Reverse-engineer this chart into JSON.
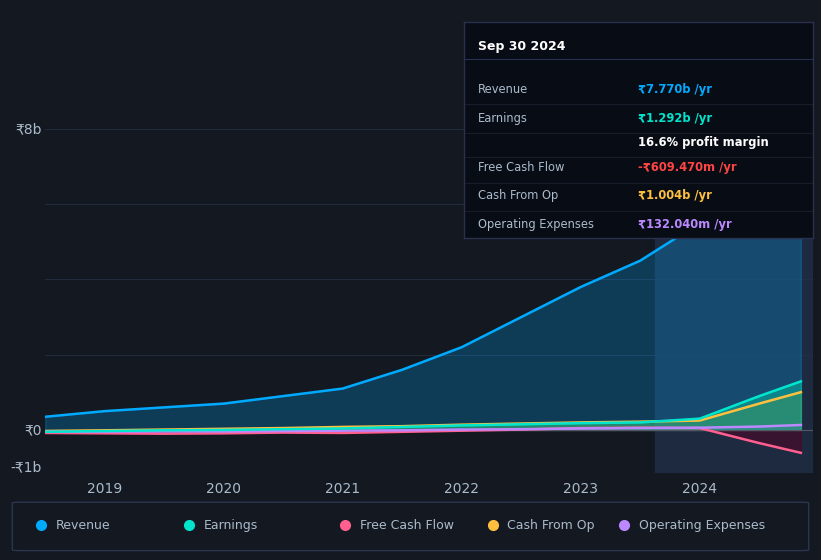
{
  "bg_color": "#141820",
  "plot_bg_color": "#141820",
  "title": "Sep 30 2024",
  "y_label_top": "₹8b",
  "y_label_zero": "₹0",
  "y_label_bottom": "-₹1b",
  "x_tick_positions": [
    2019,
    2020,
    2021,
    2022,
    2023,
    2024
  ],
  "legend": [
    {
      "label": "Revenue",
      "color": "#00aaff"
    },
    {
      "label": "Earnings",
      "color": "#00e5cc"
    },
    {
      "label": "Free Cash Flow",
      "color": "#ff6090"
    },
    {
      "label": "Cash From Op",
      "color": "#ffc040"
    },
    {
      "label": "Operating Expenses",
      "color": "#bb88ff"
    }
  ],
  "tooltip_title": "Sep 30 2024",
  "tooltip_rows": [
    {
      "label": "Revenue",
      "value": "₹7.770b /yr",
      "label_color": "#aabbcc",
      "value_color": "#00aaff"
    },
    {
      "label": "Earnings",
      "value": "₹1.292b /yr",
      "label_color": "#aabbcc",
      "value_color": "#00e5cc"
    },
    {
      "label": "",
      "value": "16.6% profit margin",
      "label_color": "#aabbcc",
      "value_color": "#ffffff"
    },
    {
      "label": "Free Cash Flow",
      "value": "-₹609.470m /yr",
      "label_color": "#aabbcc",
      "value_color": "#ff4444"
    },
    {
      "label": "Cash From Op",
      "value": "₹1.004b /yr",
      "label_color": "#aabbcc",
      "value_color": "#ffc040"
    },
    {
      "label": "Operating Expenses",
      "value": "₹132.040m /yr",
      "label_color": "#aabbcc",
      "value_color": "#bb88ff"
    }
  ],
  "series": {
    "Revenue": {
      "color": "#00aaff",
      "fill_color": "#00aaff",
      "fill_alpha": 0.25,
      "x": [
        2018.5,
        2019.0,
        2019.5,
        2020.0,
        2020.5,
        2021.0,
        2021.5,
        2022.0,
        2022.5,
        2023.0,
        2023.5,
        2024.0,
        2024.5,
        2024.85
      ],
      "y": [
        0.35,
        0.5,
        0.6,
        0.7,
        0.9,
        1.1,
        1.6,
        2.2,
        3.0,
        3.8,
        4.5,
        5.5,
        6.8,
        7.77
      ]
    },
    "Earnings": {
      "color": "#00e5cc",
      "fill_color": "#00ccaa",
      "fill_alpha": 0.45,
      "x": [
        2018.5,
        2019.0,
        2019.5,
        2020.0,
        2020.5,
        2021.0,
        2021.5,
        2022.0,
        2022.5,
        2023.0,
        2023.5,
        2024.0,
        2024.5,
        2024.85
      ],
      "y": [
        -0.05,
        -0.03,
        -0.01,
        0.0,
        0.02,
        0.04,
        0.08,
        0.12,
        0.15,
        0.18,
        0.2,
        0.3,
        0.9,
        1.292
      ]
    },
    "FreeCashFlow": {
      "color": "#ff6090",
      "fill_color": "#550022",
      "fill_alpha": 0.5,
      "x": [
        2018.5,
        2019.0,
        2019.5,
        2020.0,
        2020.5,
        2021.0,
        2021.5,
        2022.0,
        2022.5,
        2023.0,
        2023.5,
        2024.0,
        2024.5,
        2024.85
      ],
      "y": [
        -0.08,
        -0.09,
        -0.1,
        -0.09,
        -0.07,
        -0.08,
        -0.05,
        -0.02,
        0.01,
        0.05,
        0.06,
        0.05,
        -0.35,
        -0.609
      ]
    },
    "CashFromOp": {
      "color": "#ffc040",
      "fill_color": "#aa7700",
      "fill_alpha": 0.35,
      "x": [
        2018.5,
        2019.0,
        2019.5,
        2020.0,
        2020.5,
        2021.0,
        2021.5,
        2022.0,
        2022.5,
        2023.0,
        2023.5,
        2024.0,
        2024.5,
        2024.85
      ],
      "y": [
        -0.03,
        -0.01,
        0.01,
        0.03,
        0.05,
        0.08,
        0.1,
        0.14,
        0.17,
        0.2,
        0.22,
        0.25,
        0.7,
        1.004
      ]
    },
    "OperatingExpenses": {
      "color": "#bb88ff",
      "fill_color": "#7755aa",
      "fill_alpha": 0.3,
      "x": [
        2018.5,
        2019.0,
        2019.5,
        2020.0,
        2020.5,
        2021.0,
        2021.5,
        2022.0,
        2022.5,
        2023.0,
        2023.5,
        2024.0,
        2024.5,
        2024.85
      ],
      "y": [
        -0.05,
        -0.05,
        -0.04,
        -0.04,
        -0.03,
        -0.02,
        -0.01,
        0.01,
        0.02,
        0.04,
        0.05,
        0.06,
        0.09,
        0.132
      ]
    }
  },
  "xlim": [
    2018.5,
    2024.95
  ],
  "ylim": [
    -1.15,
    8.6
  ],
  "highlight_x_start": 2023.62,
  "highlight_x_end": 2024.95,
  "highlight_color": "#1e2a40",
  "grid_y": [
    0,
    2,
    4,
    6,
    8
  ],
  "grid_color": "#252f45",
  "zero_line_color": "#555566",
  "text_color": "#aabbcc",
  "tick_fontsize": 10,
  "y_label_fontsize": 10
}
